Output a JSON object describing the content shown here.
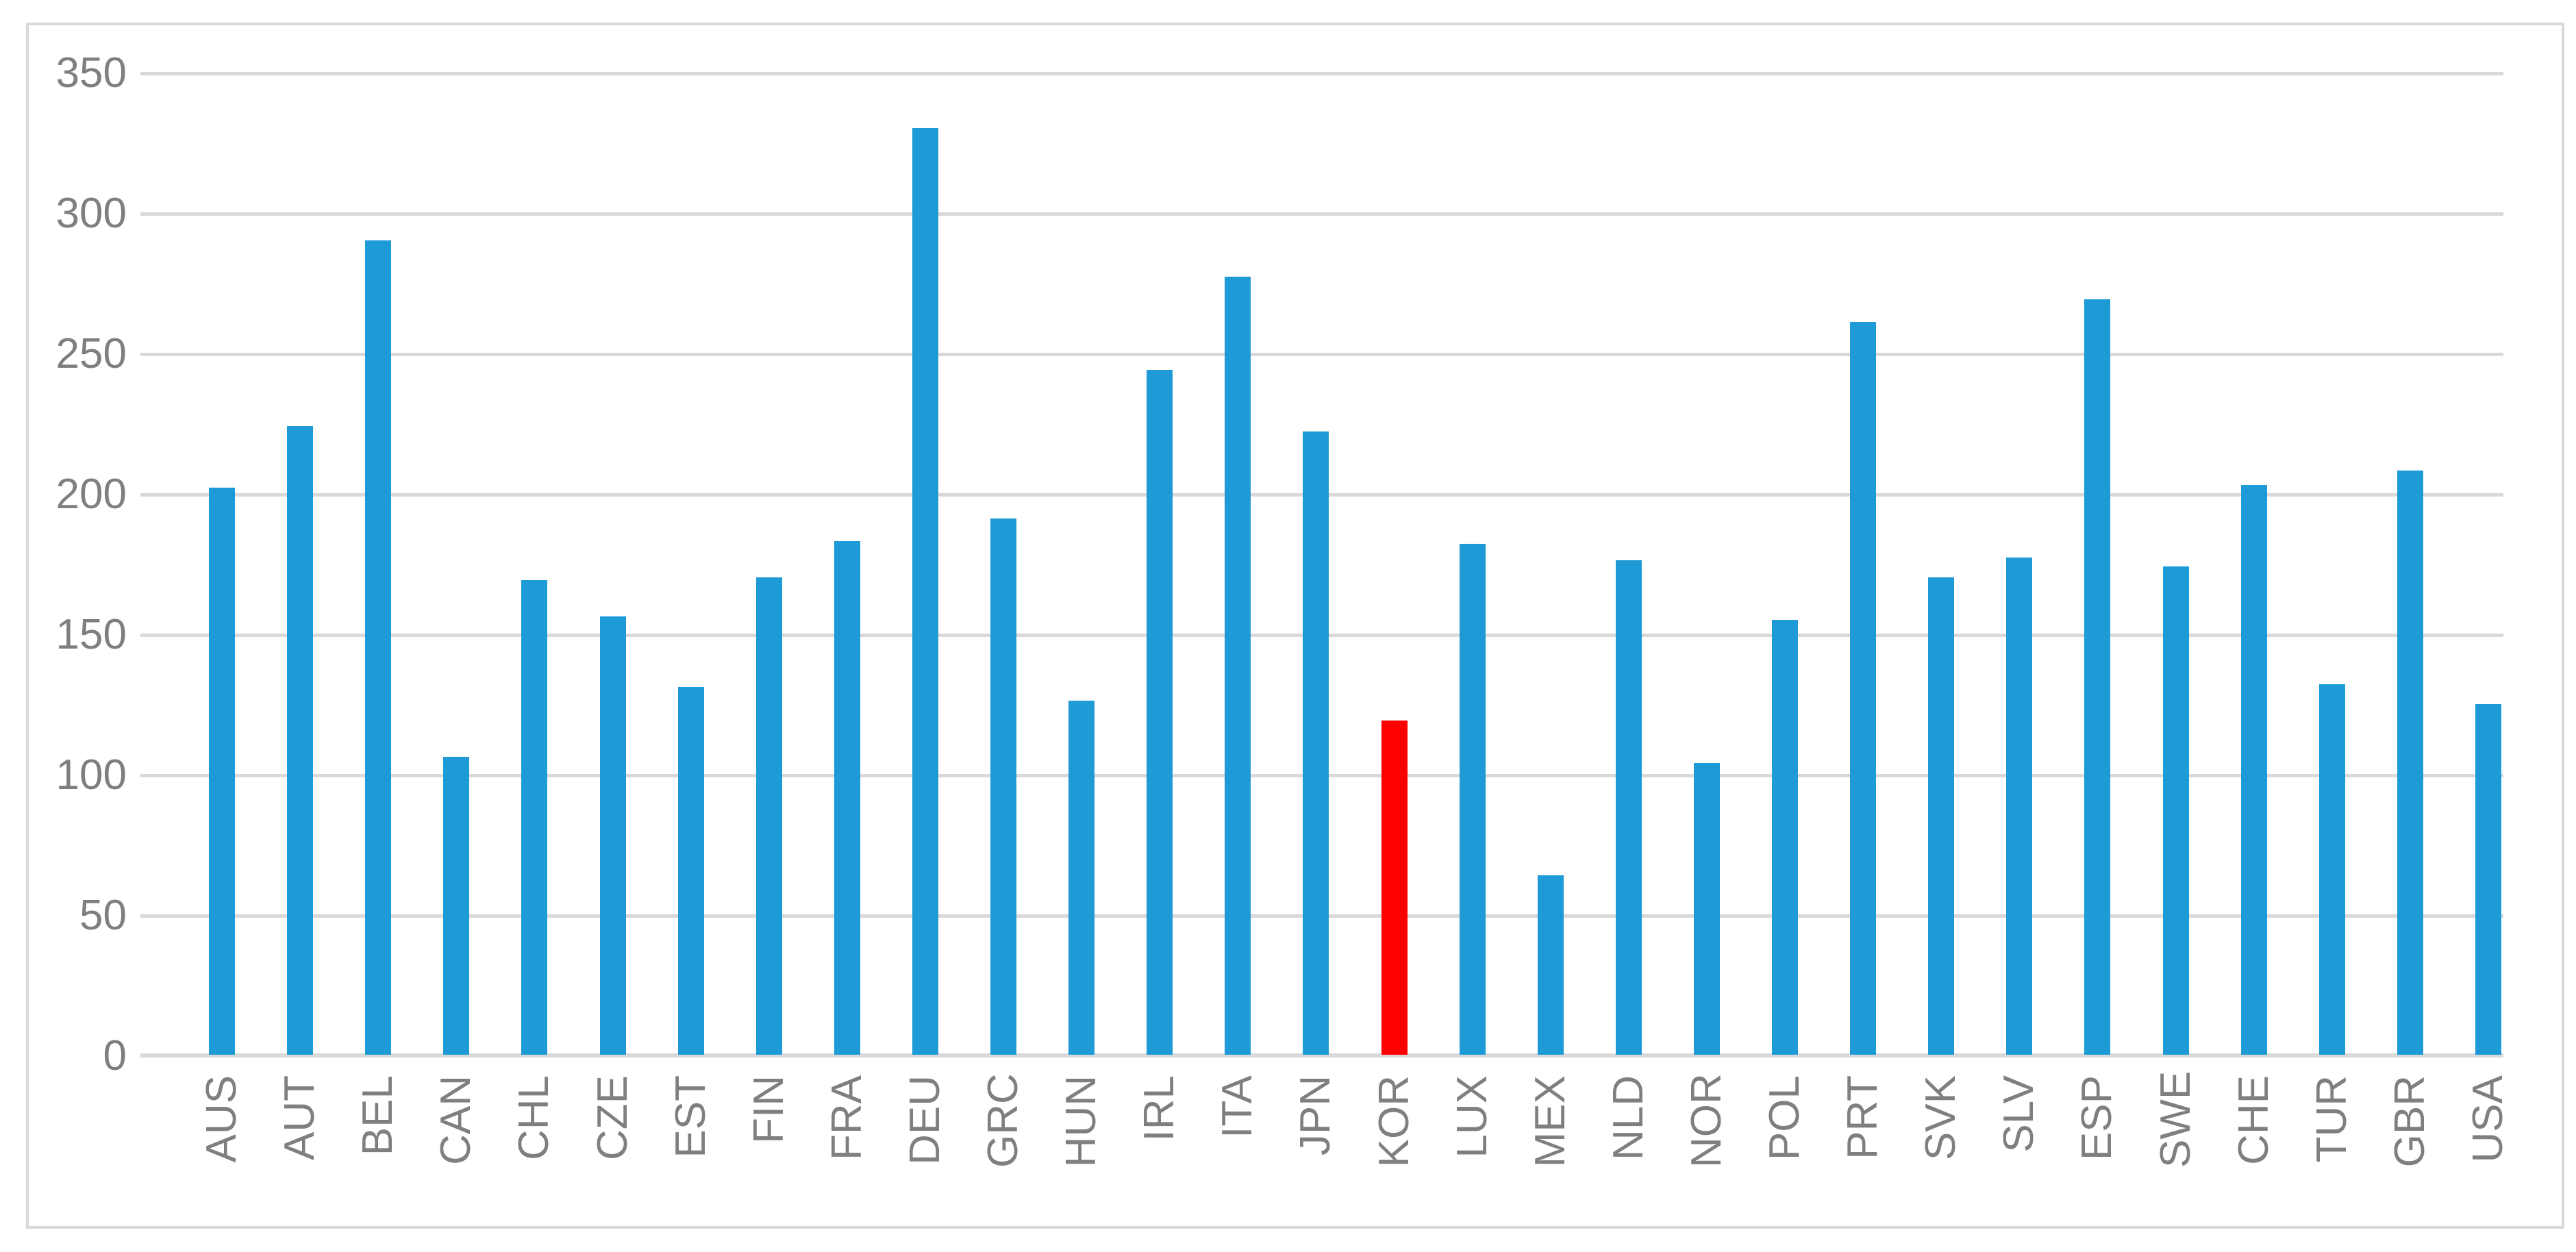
{
  "chart_data": {
    "type": "bar",
    "title": "",
    "xlabel": "",
    "ylabel": "",
    "categories": [
      "AUS",
      "AUT",
      "BEL",
      "CAN",
      "CHL",
      "CZE",
      "EST",
      "FIN",
      "FRA",
      "DEU",
      "GRC",
      "HUN",
      "IRL",
      "ITA",
      "JPN",
      "KOR",
      "LUX",
      "MEX",
      "NLD",
      "NOR",
      "POL",
      "PRT",
      "SVK",
      "SLV",
      "ESP",
      "SWE",
      "CHE",
      "TUR",
      "GBR",
      "USA"
    ],
    "values": [
      202,
      224,
      290,
      106,
      169,
      156,
      131,
      170,
      183,
      330,
      191,
      126,
      244,
      277,
      222,
      119,
      182,
      64,
      176,
      104,
      155,
      261,
      170,
      177,
      269,
      174,
      203,
      132,
      208,
      125
    ],
    "highlight": {
      "category": "KOR",
      "color": "#FF0000"
    },
    "bar_color": "#1E9BD7",
    "yticks": [
      0,
      50,
      100,
      150,
      200,
      250,
      300,
      350
    ],
    "ytick_labels": [
      "0",
      "50",
      "100",
      "150",
      "200",
      "250",
      "300",
      "350"
    ],
    "ylim": [
      0,
      350
    ],
    "grid": "horizontal-only",
    "legend": "none",
    "axis_label_color": "#7F7F7F",
    "gridline_color": "#D9D9D9",
    "frame_color": "#D9D9D9",
    "background_color": "#FFFFFF"
  }
}
